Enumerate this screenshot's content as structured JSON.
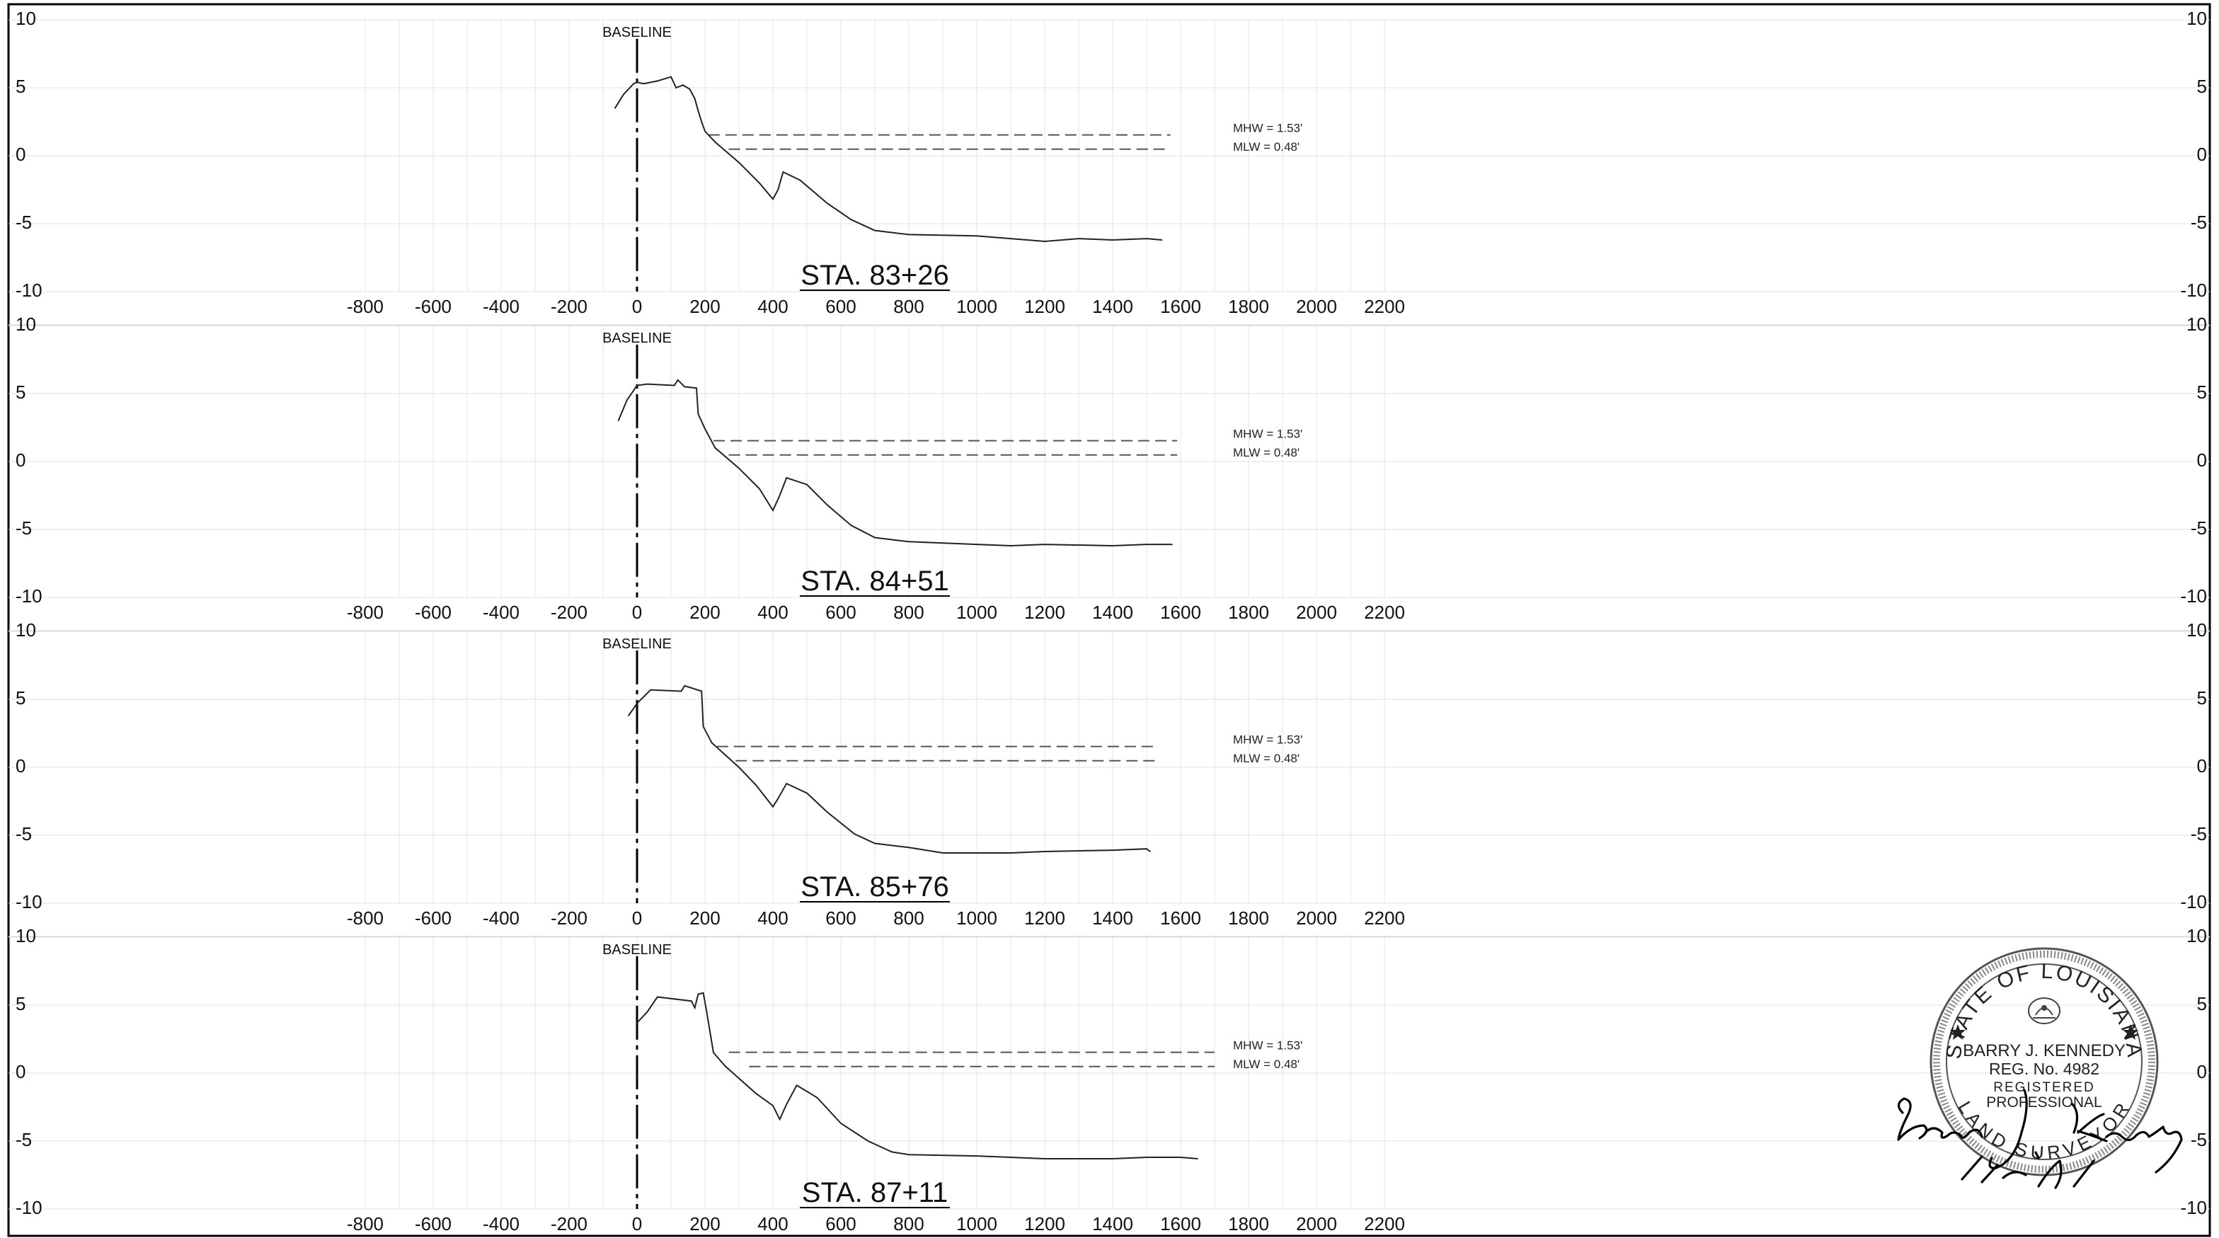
{
  "chart_data": [
    {
      "type": "line",
      "title": "STA. 83+26",
      "xlim": [
        -800,
        2200
      ],
      "ylim": [
        -10,
        10
      ],
      "xticks": [
        -800,
        -600,
        -400,
        -200,
        0,
        200,
        400,
        600,
        800,
        1000,
        1200,
        1400,
        1600,
        1800,
        2000,
        2200
      ],
      "yticks": [
        10,
        5,
        0,
        -5,
        -10
      ],
      "baseline_label": "BASELINE",
      "baseline_x": 0,
      "water_levels": [
        {
          "label": "MHW = 1.53'",
          "y": 1.53,
          "x_start": 210,
          "x_end": 1570
        },
        {
          "label": "MLW = 0.48'",
          "y": 0.48,
          "x_start": 270,
          "x_end": 1570
        }
      ],
      "series": [
        {
          "x": [
            -65,
            -40,
            -10,
            0,
            20,
            60,
            100,
            115,
            135,
            155,
            170,
            180,
            190,
            200,
            230,
            300,
            360,
            400,
            415,
            430,
            480,
            560,
            630,
            700,
            800,
            1000,
            1200,
            1300,
            1400,
            1500,
            1545
          ],
          "y": [
            3.5,
            4.5,
            5.3,
            5.4,
            5.3,
            5.5,
            5.8,
            5.0,
            5.2,
            4.9,
            4.2,
            3.3,
            2.5,
            1.8,
            1.0,
            -0.5,
            -2.0,
            -3.2,
            -2.5,
            -1.2,
            -1.8,
            -3.5,
            -4.7,
            -5.5,
            -5.8,
            -5.9,
            -6.3,
            -6.1,
            -6.2,
            -6.1,
            -6.2
          ]
        }
      ]
    },
    {
      "type": "line",
      "title": "STA. 84+51",
      "xlim": [
        -800,
        2200
      ],
      "ylim": [
        -10,
        10
      ],
      "xticks": [
        -800,
        -600,
        -400,
        -200,
        0,
        200,
        400,
        600,
        800,
        1000,
        1200,
        1400,
        1600,
        1800,
        2000,
        2200
      ],
      "yticks": [
        10,
        5,
        0,
        -5,
        -10
      ],
      "baseline_label": "BASELINE",
      "baseline_x": 0,
      "water_levels": [
        {
          "label": "MHW = 1.53'",
          "y": 1.53,
          "x_start": 225,
          "x_end": 1590
        },
        {
          "label": "MLW = 0.48'",
          "y": 0.48,
          "x_start": 270,
          "x_end": 1590
        }
      ],
      "series": [
        {
          "x": [
            -55,
            -30,
            0,
            30,
            110,
            120,
            140,
            175,
            180,
            200,
            230,
            300,
            360,
            400,
            420,
            440,
            500,
            560,
            630,
            700,
            800,
            1000,
            1100,
            1200,
            1400,
            1500,
            1575
          ],
          "y": [
            3.0,
            4.5,
            5.6,
            5.7,
            5.6,
            6.0,
            5.5,
            5.4,
            3.5,
            2.4,
            1.0,
            -0.5,
            -2.0,
            -3.6,
            -2.5,
            -1.2,
            -1.7,
            -3.2,
            -4.7,
            -5.6,
            -5.9,
            -6.1,
            -6.2,
            -6.1,
            -6.2,
            -6.1,
            -6.1
          ]
        }
      ]
    },
    {
      "type": "line",
      "title": "STA. 85+76",
      "xlim": [
        -800,
        2200
      ],
      "ylim": [
        -10,
        10
      ],
      "xticks": [
        -800,
        -600,
        -400,
        -200,
        0,
        200,
        400,
        600,
        800,
        1000,
        1200,
        1400,
        1600,
        1800,
        2000,
        2200
      ],
      "yticks": [
        10,
        5,
        0,
        -5,
        -10
      ],
      "baseline_label": "BASELINE",
      "baseline_x": 0,
      "water_levels": [
        {
          "label": "MHW = 1.53'",
          "y": 1.53,
          "x_start": 235,
          "x_end": 1525
        },
        {
          "label": "MLW = 0.48'",
          "y": 0.48,
          "x_start": 290,
          "x_end": 1525
        }
      ],
      "series": [
        {
          "x": [
            -25,
            0,
            40,
            130,
            140,
            190,
            195,
            220,
            300,
            350,
            400,
            415,
            440,
            500,
            560,
            640,
            700,
            800,
            900,
            1000,
            1100,
            1200,
            1400,
            1500,
            1510
          ],
          "y": [
            3.8,
            4.7,
            5.7,
            5.6,
            6.0,
            5.6,
            3.0,
            1.8,
            0.0,
            -1.3,
            -2.9,
            -2.3,
            -1.2,
            -1.9,
            -3.3,
            -4.9,
            -5.6,
            -5.9,
            -6.3,
            -6.3,
            -6.3,
            -6.2,
            -6.1,
            -6.0,
            -6.2
          ]
        }
      ]
    },
    {
      "type": "line",
      "title": "STA. 87+11",
      "xlim": [
        -800,
        2200
      ],
      "ylim": [
        -10,
        10
      ],
      "xticks": [
        -800,
        -600,
        -400,
        -200,
        0,
        200,
        400,
        600,
        800,
        1000,
        1200,
        1400,
        1600,
        1800,
        2000,
        2200
      ],
      "yticks": [
        10,
        5,
        0,
        -5,
        -10
      ],
      "baseline_label": "BASELINE",
      "baseline_x": 0,
      "water_levels": [
        {
          "label": "MHW = 1.53'",
          "y": 1.53,
          "x_start": 270,
          "x_end": 1700
        },
        {
          "label": "MLW = 0.48'",
          "y": 0.48,
          "x_start": 330,
          "x_end": 1700
        }
      ],
      "series": [
        {
          "x": [
            0,
            30,
            60,
            160,
            170,
            180,
            195,
            205,
            225,
            260,
            350,
            400,
            420,
            440,
            470,
            530,
            600,
            680,
            750,
            800,
            1000,
            1200,
            1400,
            1500,
            1600,
            1650
          ],
          "y": [
            3.7,
            4.5,
            5.6,
            5.3,
            4.8,
            5.8,
            5.9,
            4.5,
            1.5,
            0.5,
            -1.5,
            -2.4,
            -3.4,
            -2.3,
            -0.9,
            -1.8,
            -3.7,
            -5.0,
            -5.8,
            -6.0,
            -6.1,
            -6.3,
            -6.3,
            -6.2,
            -6.2,
            -6.3
          ]
        }
      ]
    }
  ],
  "seal": {
    "state": "STATE OF LOUISIANA",
    "name": "BARRY J. KENNEDY",
    "reg": "REG. No. 4982",
    "registered": "REGISTERED",
    "professional": "PROFESSIONAL",
    "surveyor": "LAND SURVEYOR",
    "star_icon": "star-icon",
    "emblem_icon": "pelican-emblem-icon",
    "signature_text": "Barry J. Kennedy",
    "signature_date": "11/21/19"
  }
}
